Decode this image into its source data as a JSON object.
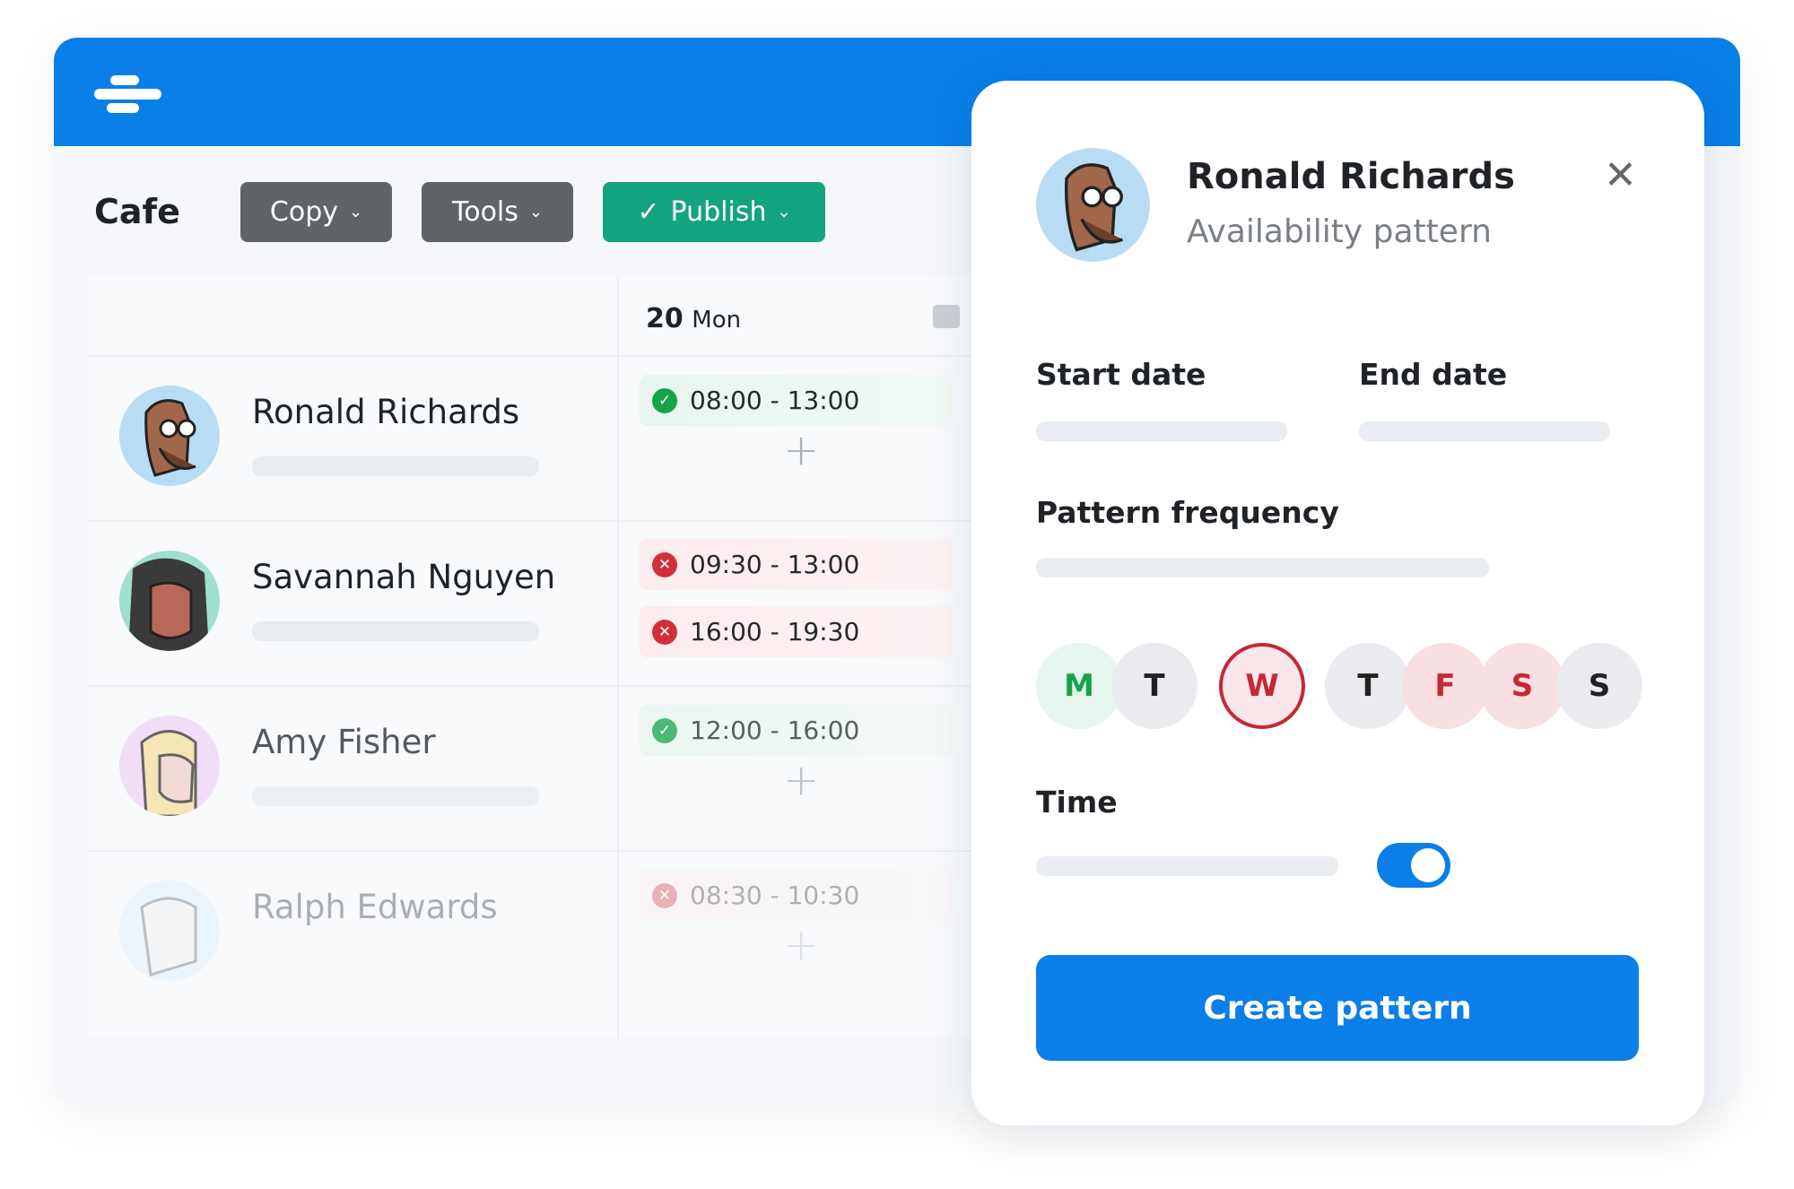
{
  "colors": {
    "brand": "#0a7fe8",
    "publish": "#14a37f",
    "available": "#16a34a",
    "unavailable": "#d32f3b"
  },
  "toolbar": {
    "title": "Cafe",
    "copy": "Copy",
    "tools": "Tools",
    "publish": "Publish"
  },
  "schedule": {
    "day_header": {
      "day": "20",
      "weekday": "Mon"
    },
    "rows": [
      {
        "name": "Ronald Richards",
        "shifts": [
          {
            "time": "08:00 - 13:00",
            "status": "available"
          }
        ]
      },
      {
        "name": "Savannah Nguyen",
        "shifts": [
          {
            "time": "09:30 - 13:00",
            "status": "unavailable"
          },
          {
            "time": "16:00 - 19:30",
            "status": "unavailable"
          }
        ]
      },
      {
        "name": "Amy Fisher",
        "shifts": [
          {
            "time": "12:00 - 16:00",
            "status": "available"
          }
        ]
      },
      {
        "name": "Ralph Edwards",
        "shifts": [
          {
            "time": "08:30 - 10:30",
            "status": "unavailable"
          }
        ]
      }
    ]
  },
  "panel": {
    "name": "Ronald Richards",
    "subtitle": "Availability pattern",
    "start_label": "Start date",
    "end_label": "End date",
    "frequency_label": "Pattern frequency",
    "days": [
      {
        "letter": "M",
        "state": "available"
      },
      {
        "letter": "T",
        "state": "neutral"
      },
      {
        "letter": "W",
        "state": "selected-unavailable"
      },
      {
        "letter": "T",
        "state": "neutral"
      },
      {
        "letter": "F",
        "state": "unavailable"
      },
      {
        "letter": "S",
        "state": "unavailable"
      },
      {
        "letter": "S",
        "state": "neutral"
      }
    ],
    "time_label": "Time",
    "time_toggle_on": true,
    "create_label": "Create pattern"
  }
}
